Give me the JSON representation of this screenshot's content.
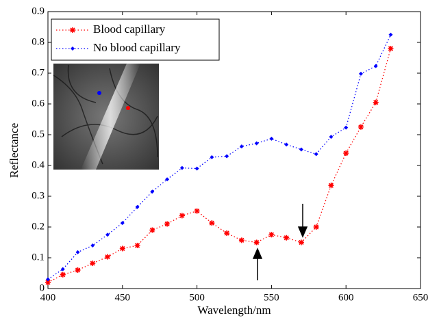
{
  "chart_data": {
    "type": "line",
    "xlabel": "Wavelength/nm",
    "ylabel": "Reflectance",
    "x": [
      400,
      410,
      420,
      430,
      440,
      450,
      460,
      470,
      480,
      490,
      500,
      510,
      520,
      530,
      540,
      550,
      560,
      570,
      580,
      590,
      600,
      610,
      620,
      630
    ],
    "series": [
      {
        "name": "Blood capillary",
        "color": "#ff0000",
        "marker": "star",
        "values": [
          0.02,
          0.045,
          0.06,
          0.082,
          0.103,
          0.13,
          0.14,
          0.19,
          0.21,
          0.237,
          0.252,
          0.213,
          0.18,
          0.157,
          0.15,
          0.175,
          0.165,
          0.15,
          0.2,
          0.335,
          0.44,
          0.525,
          0.605,
          0.78
        ]
      },
      {
        "name": "No blood capillary",
        "color": "#0000ff",
        "marker": "diamond",
        "values": [
          0.03,
          0.063,
          0.118,
          0.14,
          0.175,
          0.213,
          0.265,
          0.315,
          0.355,
          0.392,
          0.39,
          0.427,
          0.43,
          0.462,
          0.472,
          0.487,
          0.468,
          0.452,
          0.437,
          0.493,
          0.523,
          0.698,
          0.723,
          0.825
        ]
      }
    ],
    "xlim": [
      400,
      650
    ],
    "xticks": [
      400,
      450,
      500,
      550,
      600,
      650
    ],
    "ylim": [
      0,
      0.9
    ],
    "yticks": [
      0,
      0.1,
      0.2,
      0.3,
      0.4,
      0.5,
      0.6,
      0.7,
      0.8,
      0.9
    ],
    "legend": "upper left"
  }
}
